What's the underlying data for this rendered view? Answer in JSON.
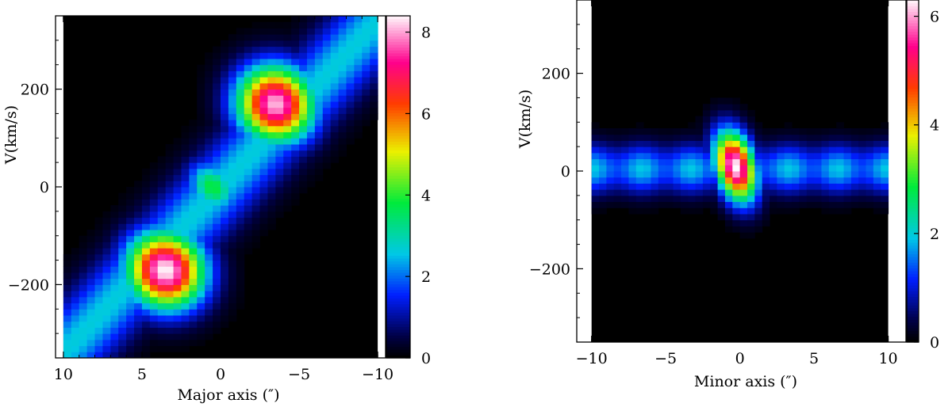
{
  "chart_data": [
    {
      "type": "heatmap",
      "xlabel": "Major axis (″)",
      "ylabel": "V(km/s)",
      "xlim": [
        10.5,
        -10.5
      ],
      "ylim": [
        -350,
        350
      ],
      "xticks": [
        "10",
        "5",
        "0",
        "−5",
        "−10"
      ],
      "yticks": [
        "−200",
        "0",
        "200"
      ],
      "colorbar": {
        "ticks": [
          "0",
          "2",
          "4",
          "6",
          "8"
        ],
        "range": [
          0,
          8.4
        ]
      },
      "data_extent": {
        "x": [
          10,
          -10
        ],
        "y": [
          -345,
          345
        ]
      },
      "features": [
        {
          "x": 3.5,
          "v": -170,
          "peak": 8.4,
          "sx": 1.7,
          "sv": 55,
          "rot": -0.4
        },
        {
          "x": -3.5,
          "v": 170,
          "peak": 8.1,
          "sx": 1.7,
          "sv": 55,
          "rot": -0.4
        },
        {
          "x": 0.5,
          "v": 0,
          "peak": 3.8,
          "sx": 1.0,
          "sv": 40,
          "rot": -0.6
        }
      ],
      "ridge": {
        "slope_kms_per_arcsec": -34,
        "width_kms": 110,
        "level": 2.6
      }
    },
    {
      "type": "heatmap",
      "xlabel": "Minor axis (″)",
      "ylabel": "V(km/s)",
      "xlim": [
        -11,
        11.2
      ],
      "ylim": [
        -350,
        350
      ],
      "xticks": [
        "−10",
        "−5",
        "0",
        "5",
        "10"
      ],
      "yticks": [
        "−200",
        "0",
        "200"
      ],
      "colorbar": {
        "ticks": [
          "0",
          "2",
          "4",
          "6"
        ],
        "range": [
          0,
          6.3
        ]
      },
      "data_extent": {
        "x": [
          -10,
          10
        ],
        "y": [
          -100,
          100
        ]
      },
      "features": [
        {
          "x": -0.3,
          "v": 10,
          "peak": 6.3,
          "sx": 0.9,
          "sv": 50,
          "rot": 0.25
        }
      ],
      "band": {
        "v_center": 5,
        "width_kms": 50,
        "level": 1.9
      }
    }
  ]
}
